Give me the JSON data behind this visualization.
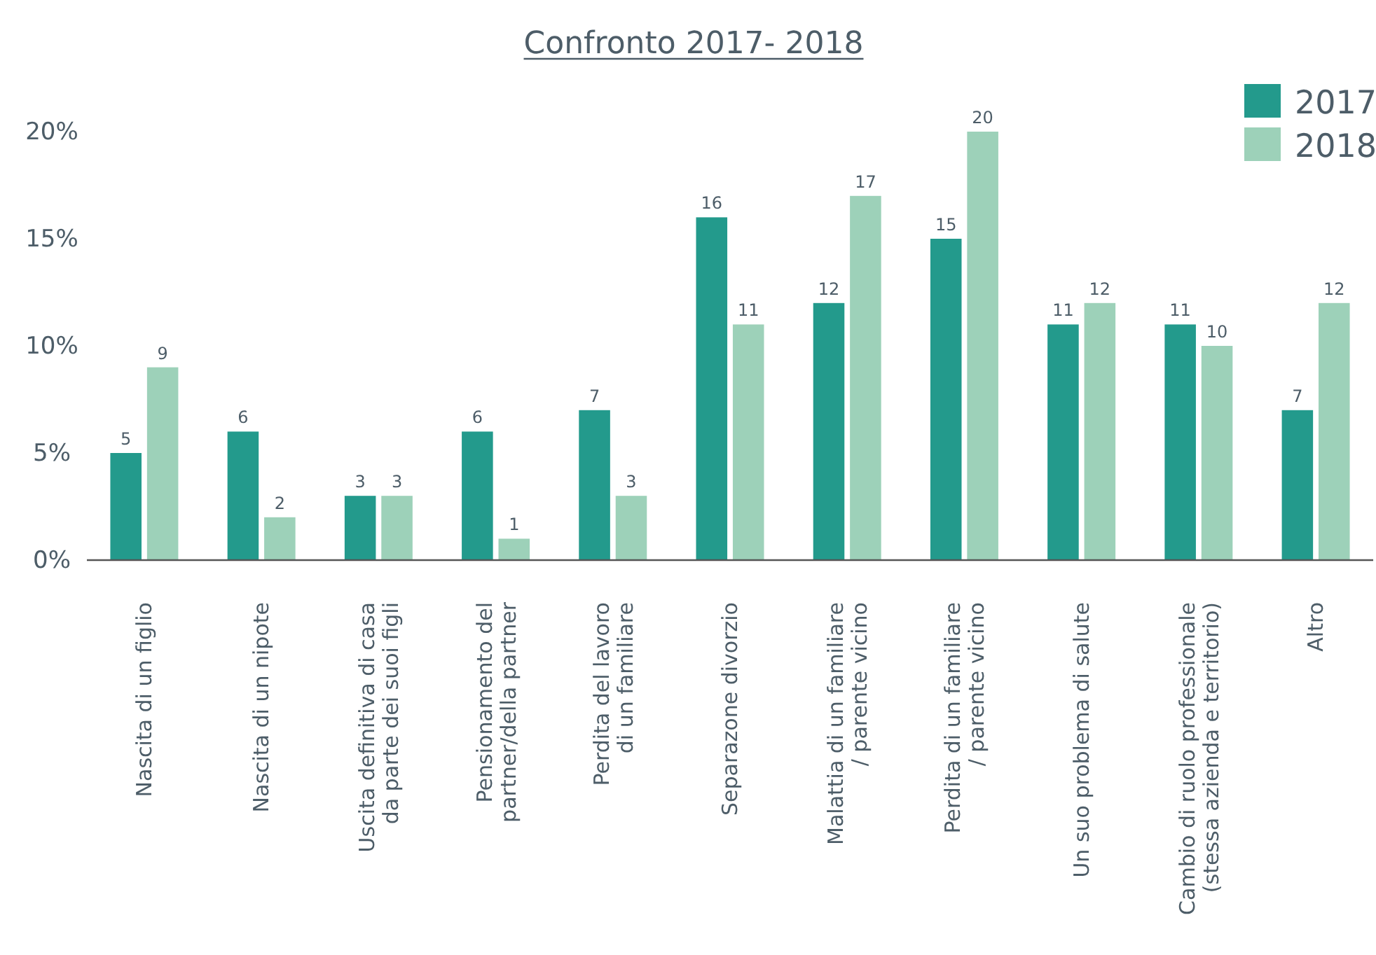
{
  "chart_data": {
    "type": "bar",
    "title": "Confronto 2017- 2018",
    "categories": [
      "Nascita di un figlio",
      "Nascita di un nipote",
      "Uscita definitiva di casa\nda parte dei suoi figli",
      "Pensionamento del\npartner/della partner",
      "Perdita del lavoro\ndi un familiare",
      "Separazone divorzio",
      "Malattia di un familiare\n/ parente vicino",
      "Perdita di un familiare\n/ parente vicino",
      "Un suo problema di salute",
      "Cambio di ruolo professionale\n(stessa azienda e territorio)",
      "Altro"
    ],
    "series": [
      {
        "name": "2017",
        "color": "#239a8c",
        "values": [
          5,
          6,
          3,
          6,
          7,
          16,
          12,
          15,
          11,
          11,
          7
        ]
      },
      {
        "name": "2018",
        "color": "#9dd1b9",
        "values": [
          9,
          2,
          3,
          1,
          3,
          11,
          17,
          20,
          12,
          10,
          12
        ]
      }
    ],
    "ylim": [
      0,
      20
    ],
    "yticks": [
      {
        "value": 0,
        "label": "0%"
      },
      {
        "value": 5,
        "label": "5%"
      },
      {
        "value": 10,
        "label": "10%"
      },
      {
        "value": 15,
        "label": "15%"
      },
      {
        "value": 20,
        "label": "20%"
      }
    ],
    "data_labels": true,
    "legend": "top right"
  }
}
